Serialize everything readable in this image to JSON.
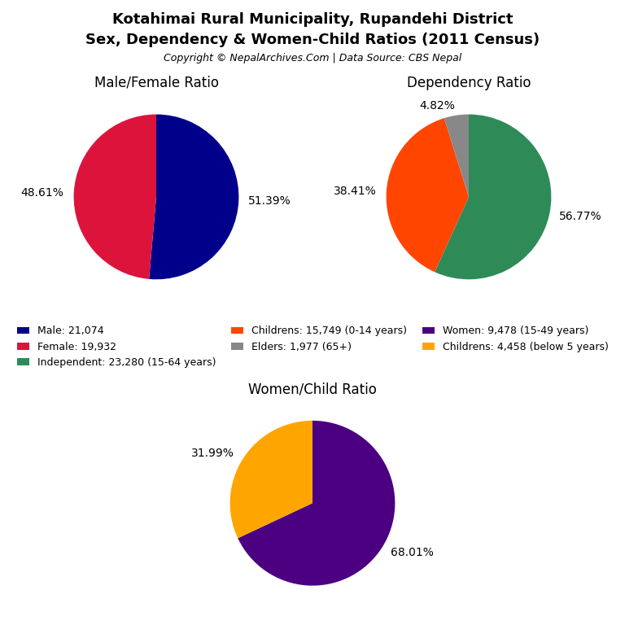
{
  "title": "Kotahimai Rural Municipality, Rupandehi District",
  "subtitle": "Sex, Dependency & Women-Child Ratios (2011 Census)",
  "annotations": [
    "Copyright © NepalArchives.Com | Data Source: CBS Nepal"
  ],
  "legend": "center",
  "chart_data": [
    {
      "type": "pie",
      "title": "Male/Female Ratio",
      "categories": [
        "Male: 21,074",
        "Female: 19,932"
      ],
      "values": [
        51.39,
        48.61
      ],
      "value_labels": [
        "51.39%",
        "48.61%"
      ],
      "colors": [
        "#00008B",
        "#DC143C"
      ]
    },
    {
      "type": "pie",
      "title": "Dependency Ratio",
      "categories": [
        "Independent: 23,280 (15-64 years)",
        "Childrens: 15,749 (0-14 years)",
        "Elders: 1,977 (65+)"
      ],
      "values": [
        56.77,
        38.41,
        4.82
      ],
      "value_labels": [
        "56.77%",
        "38.41%",
        "4.82%"
      ],
      "colors": [
        "#2E8B57",
        "#FF4500",
        "#888888"
      ]
    },
    {
      "type": "pie",
      "title": "Women/Child Ratio",
      "categories": [
        "Women: 9,478 (15-49 years)",
        "Childrens: 4,458 (below 5 years)"
      ],
      "values": [
        68.01,
        31.99
      ],
      "value_labels": [
        "68.01%",
        "31.99%"
      ],
      "colors": [
        "#4B0082",
        "#FFA500"
      ]
    }
  ]
}
